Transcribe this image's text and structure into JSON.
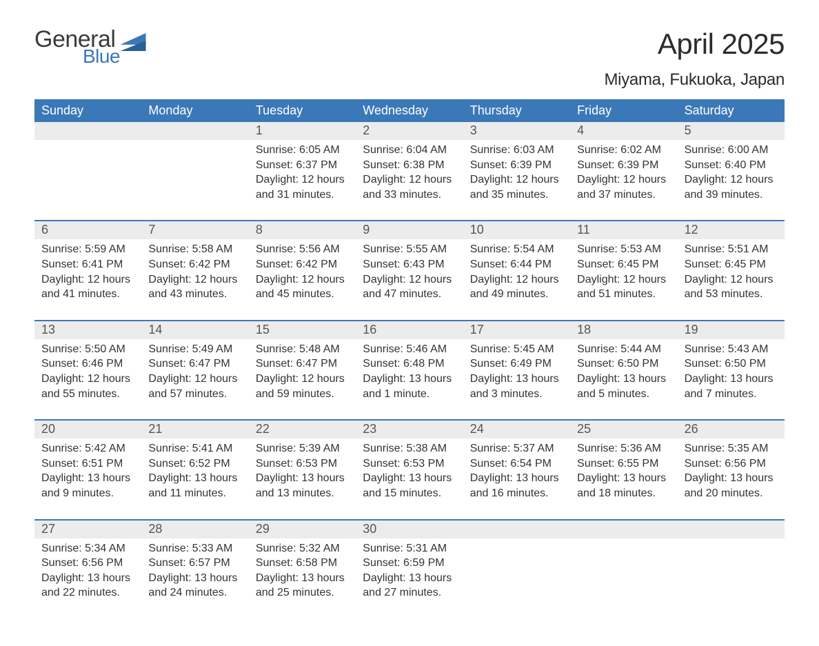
{
  "logo": {
    "general": "General",
    "blue": "Blue",
    "flag_color": "#3b78b8"
  },
  "title": "April 2025",
  "subtitle": "Miyama, Fukuoka, Japan",
  "colors": {
    "header_bg": "#3b78b8",
    "daynum_bg": "#ececec",
    "text": "#333333",
    "page_bg": "#ffffff"
  },
  "dow": [
    "Sunday",
    "Monday",
    "Tuesday",
    "Wednesday",
    "Thursday",
    "Friday",
    "Saturday"
  ],
  "weeks": [
    [
      null,
      null,
      {
        "n": "1",
        "sr": "Sunrise: 6:05 AM",
        "ss": "Sunset: 6:37 PM",
        "d1": "Daylight: 12 hours",
        "d2": "and 31 minutes."
      },
      {
        "n": "2",
        "sr": "Sunrise: 6:04 AM",
        "ss": "Sunset: 6:38 PM",
        "d1": "Daylight: 12 hours",
        "d2": "and 33 minutes."
      },
      {
        "n": "3",
        "sr": "Sunrise: 6:03 AM",
        "ss": "Sunset: 6:39 PM",
        "d1": "Daylight: 12 hours",
        "d2": "and 35 minutes."
      },
      {
        "n": "4",
        "sr": "Sunrise: 6:02 AM",
        "ss": "Sunset: 6:39 PM",
        "d1": "Daylight: 12 hours",
        "d2": "and 37 minutes."
      },
      {
        "n": "5",
        "sr": "Sunrise: 6:00 AM",
        "ss": "Sunset: 6:40 PM",
        "d1": "Daylight: 12 hours",
        "d2": "and 39 minutes."
      }
    ],
    [
      {
        "n": "6",
        "sr": "Sunrise: 5:59 AM",
        "ss": "Sunset: 6:41 PM",
        "d1": "Daylight: 12 hours",
        "d2": "and 41 minutes."
      },
      {
        "n": "7",
        "sr": "Sunrise: 5:58 AM",
        "ss": "Sunset: 6:42 PM",
        "d1": "Daylight: 12 hours",
        "d2": "and 43 minutes."
      },
      {
        "n": "8",
        "sr": "Sunrise: 5:56 AM",
        "ss": "Sunset: 6:42 PM",
        "d1": "Daylight: 12 hours",
        "d2": "and 45 minutes."
      },
      {
        "n": "9",
        "sr": "Sunrise: 5:55 AM",
        "ss": "Sunset: 6:43 PM",
        "d1": "Daylight: 12 hours",
        "d2": "and 47 minutes."
      },
      {
        "n": "10",
        "sr": "Sunrise: 5:54 AM",
        "ss": "Sunset: 6:44 PM",
        "d1": "Daylight: 12 hours",
        "d2": "and 49 minutes."
      },
      {
        "n": "11",
        "sr": "Sunrise: 5:53 AM",
        "ss": "Sunset: 6:45 PM",
        "d1": "Daylight: 12 hours",
        "d2": "and 51 minutes."
      },
      {
        "n": "12",
        "sr": "Sunrise: 5:51 AM",
        "ss": "Sunset: 6:45 PM",
        "d1": "Daylight: 12 hours",
        "d2": "and 53 minutes."
      }
    ],
    [
      {
        "n": "13",
        "sr": "Sunrise: 5:50 AM",
        "ss": "Sunset: 6:46 PM",
        "d1": "Daylight: 12 hours",
        "d2": "and 55 minutes."
      },
      {
        "n": "14",
        "sr": "Sunrise: 5:49 AM",
        "ss": "Sunset: 6:47 PM",
        "d1": "Daylight: 12 hours",
        "d2": "and 57 minutes."
      },
      {
        "n": "15",
        "sr": "Sunrise: 5:48 AM",
        "ss": "Sunset: 6:47 PM",
        "d1": "Daylight: 12 hours",
        "d2": "and 59 minutes."
      },
      {
        "n": "16",
        "sr": "Sunrise: 5:46 AM",
        "ss": "Sunset: 6:48 PM",
        "d1": "Daylight: 13 hours",
        "d2": "and 1 minute."
      },
      {
        "n": "17",
        "sr": "Sunrise: 5:45 AM",
        "ss": "Sunset: 6:49 PM",
        "d1": "Daylight: 13 hours",
        "d2": "and 3 minutes."
      },
      {
        "n": "18",
        "sr": "Sunrise: 5:44 AM",
        "ss": "Sunset: 6:50 PM",
        "d1": "Daylight: 13 hours",
        "d2": "and 5 minutes."
      },
      {
        "n": "19",
        "sr": "Sunrise: 5:43 AM",
        "ss": "Sunset: 6:50 PM",
        "d1": "Daylight: 13 hours",
        "d2": "and 7 minutes."
      }
    ],
    [
      {
        "n": "20",
        "sr": "Sunrise: 5:42 AM",
        "ss": "Sunset: 6:51 PM",
        "d1": "Daylight: 13 hours",
        "d2": "and 9 minutes."
      },
      {
        "n": "21",
        "sr": "Sunrise: 5:41 AM",
        "ss": "Sunset: 6:52 PM",
        "d1": "Daylight: 13 hours",
        "d2": "and 11 minutes."
      },
      {
        "n": "22",
        "sr": "Sunrise: 5:39 AM",
        "ss": "Sunset: 6:53 PM",
        "d1": "Daylight: 13 hours",
        "d2": "and 13 minutes."
      },
      {
        "n": "23",
        "sr": "Sunrise: 5:38 AM",
        "ss": "Sunset: 6:53 PM",
        "d1": "Daylight: 13 hours",
        "d2": "and 15 minutes."
      },
      {
        "n": "24",
        "sr": "Sunrise: 5:37 AM",
        "ss": "Sunset: 6:54 PM",
        "d1": "Daylight: 13 hours",
        "d2": "and 16 minutes."
      },
      {
        "n": "25",
        "sr": "Sunrise: 5:36 AM",
        "ss": "Sunset: 6:55 PM",
        "d1": "Daylight: 13 hours",
        "d2": "and 18 minutes."
      },
      {
        "n": "26",
        "sr": "Sunrise: 5:35 AM",
        "ss": "Sunset: 6:56 PM",
        "d1": "Daylight: 13 hours",
        "d2": "and 20 minutes."
      }
    ],
    [
      {
        "n": "27",
        "sr": "Sunrise: 5:34 AM",
        "ss": "Sunset: 6:56 PM",
        "d1": "Daylight: 13 hours",
        "d2": "and 22 minutes."
      },
      {
        "n": "28",
        "sr": "Sunrise: 5:33 AM",
        "ss": "Sunset: 6:57 PM",
        "d1": "Daylight: 13 hours",
        "d2": "and 24 minutes."
      },
      {
        "n": "29",
        "sr": "Sunrise: 5:32 AM",
        "ss": "Sunset: 6:58 PM",
        "d1": "Daylight: 13 hours",
        "d2": "and 25 minutes."
      },
      {
        "n": "30",
        "sr": "Sunrise: 5:31 AM",
        "ss": "Sunset: 6:59 PM",
        "d1": "Daylight: 13 hours",
        "d2": "and 27 minutes."
      },
      null,
      null,
      null
    ]
  ]
}
